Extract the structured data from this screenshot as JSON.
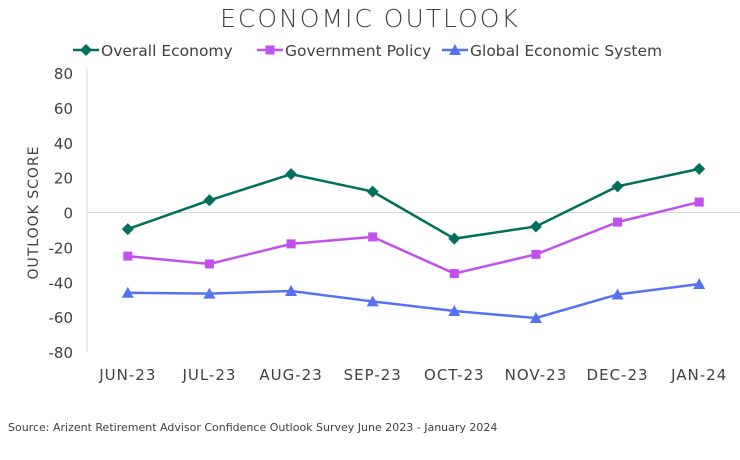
{
  "chart_data": {
    "type": "line",
    "title": "ECONOMIC OUTLOOK",
    "xlabel": "",
    "ylabel": "OUTLOOK SCORE",
    "ylim": [
      -80,
      80
    ],
    "yticks": [
      80,
      60,
      40,
      20,
      0,
      -20,
      -40,
      -60,
      -80
    ],
    "grid": false,
    "legend": "top",
    "categories": [
      "JUN-23",
      "JUL-23",
      "AUG-23",
      "SEP-23",
      "OCT-23",
      "NOV-23",
      "DEC-23",
      "JAN-24"
    ],
    "series": [
      {
        "name": "Overall Economy",
        "color": "#00705c",
        "marker": "diamond",
        "values": [
          -9.5,
          7,
          22,
          12,
          -15,
          -8,
          15,
          25
        ]
      },
      {
        "name": "Government Policy",
        "color": "#c150ef",
        "marker": "square",
        "values": [
          -25,
          -29.5,
          -18,
          -14,
          -35,
          -24,
          -5.5,
          6
        ]
      },
      {
        "name": "Global Economic System",
        "color": "#5572f2",
        "marker": "triangle",
        "values": [
          -46,
          -46.5,
          -45,
          -51,
          -56.5,
          -60.5,
          -47,
          -41
        ]
      }
    ],
    "source": "Source: Arizent Retirement Advisor Confidence Outlook Survey June 2023 - January 2024"
  }
}
